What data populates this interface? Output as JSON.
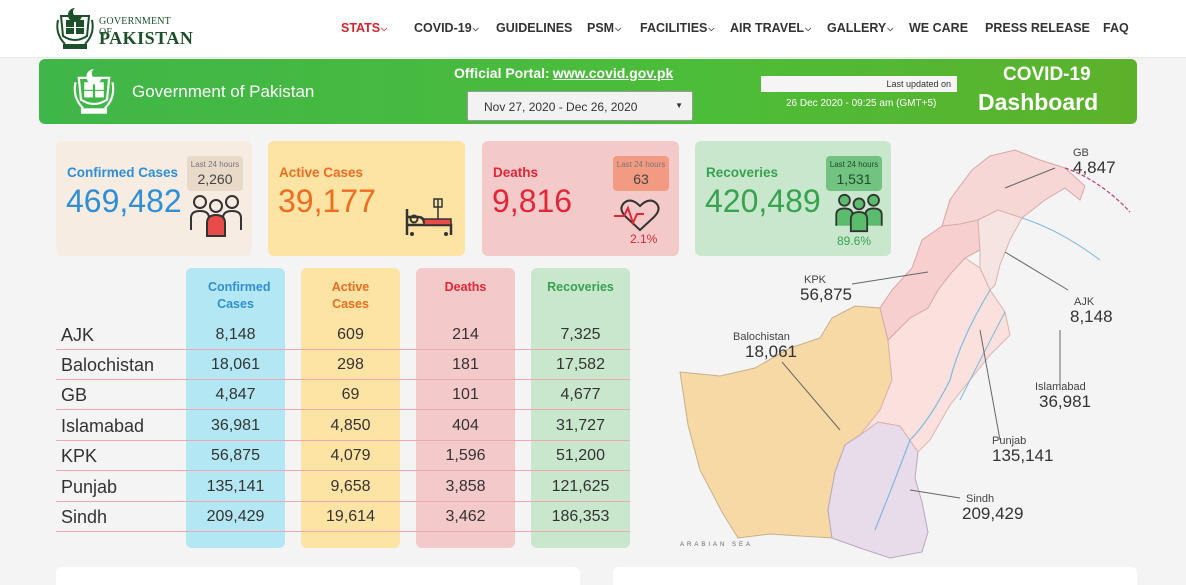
{
  "nav": {
    "logo_line1": "GOVERNMENT OF",
    "logo_line2": "PAKISTAN",
    "items": [
      {
        "label": "STATS",
        "dropdown": true,
        "active": true
      },
      {
        "label": "COVID-19",
        "dropdown": true
      },
      {
        "label": "GUIDELINES",
        "dropdown": false
      },
      {
        "label": "PSM",
        "dropdown": true
      },
      {
        "label": "FACILITIES",
        "dropdown": true
      },
      {
        "label": "AIR TRAVEL",
        "dropdown": true
      },
      {
        "label": "GALLERY",
        "dropdown": true
      },
      {
        "label": "WE CARE",
        "dropdown": false
      },
      {
        "label": "PRESS RELEASE",
        "dropdown": false
      },
      {
        "label": "FAQ",
        "dropdown": false
      }
    ]
  },
  "banner": {
    "title": "Government of Pakistan",
    "portal_label": "Official Portal:",
    "portal_url": "www.covid.gov.pk",
    "date_range": "Nov 27, 2020 - Dec 26, 2020",
    "last_updated_label": "Last updated on",
    "last_updated_time": "26 Dec 2020 - 09:25 am (GMT+5)",
    "dashboard_line1": "COVID-19",
    "dashboard_line2": "Dashboard"
  },
  "cards": {
    "confirmed": {
      "title": "Confirmed Cases",
      "value": "469,482",
      "last24_label": "Last 24 hours",
      "last24": "2,260"
    },
    "active": {
      "title": "Active Cases",
      "value": "39,177"
    },
    "deaths": {
      "title": "Deaths",
      "value": "9,816",
      "last24_label": "Last 24 hours",
      "last24": "63",
      "percent": "2.1%"
    },
    "recoveries": {
      "title": "Recoveries",
      "value": "420,489",
      "last24_label": "Last 24 hours",
      "last24": "1,531",
      "percent": "89.6%"
    }
  },
  "table": {
    "headers": [
      "Confirmed Cases",
      "Active Cases",
      "Deaths",
      "Recoveries"
    ],
    "rows": [
      {
        "region": "AJK",
        "confirmed": "8,148",
        "active": "609",
        "deaths": "214",
        "recoveries": "7,325"
      },
      {
        "region": "Balochistan",
        "confirmed": "18,061",
        "active": "298",
        "deaths": "181",
        "recoveries": "17,582"
      },
      {
        "region": "GB",
        "confirmed": "4,847",
        "active": "69",
        "deaths": "101",
        "recoveries": "4,677"
      },
      {
        "region": "Islamabad",
        "confirmed": "36,981",
        "active": "4,850",
        "deaths": "404",
        "recoveries": "31,727"
      },
      {
        "region": "KPK",
        "confirmed": "56,875",
        "active": "4,079",
        "deaths": "1,596",
        "recoveries": "51,200"
      },
      {
        "region": "Punjab",
        "confirmed": "135,141",
        "active": "9,658",
        "deaths": "3,858",
        "recoveries": "121,625"
      },
      {
        "region": "Sindh",
        "confirmed": "209,429",
        "active": "19,614",
        "deaths": "3,462",
        "recoveries": "186,353"
      }
    ]
  },
  "map": {
    "labels": [
      {
        "name": "GB",
        "value": "4,847"
      },
      {
        "name": "KPK",
        "value": "56,875"
      },
      {
        "name": "AJK",
        "value": "8,148"
      },
      {
        "name": "Balochistan",
        "value": "18,061"
      },
      {
        "name": "Islamabad",
        "value": "36,981"
      },
      {
        "name": "Punjab",
        "value": "135,141"
      },
      {
        "name": "Sindh",
        "value": "209,429"
      }
    ],
    "sea_label": "ARABIAN SEA"
  },
  "colors": {
    "confirmed": "#2f8ed4",
    "active": "#ef6c20",
    "deaths": "#e32636",
    "recoveries": "#37a24f",
    "banner": "#4cbd39",
    "nav_active": "#d9232d"
  }
}
